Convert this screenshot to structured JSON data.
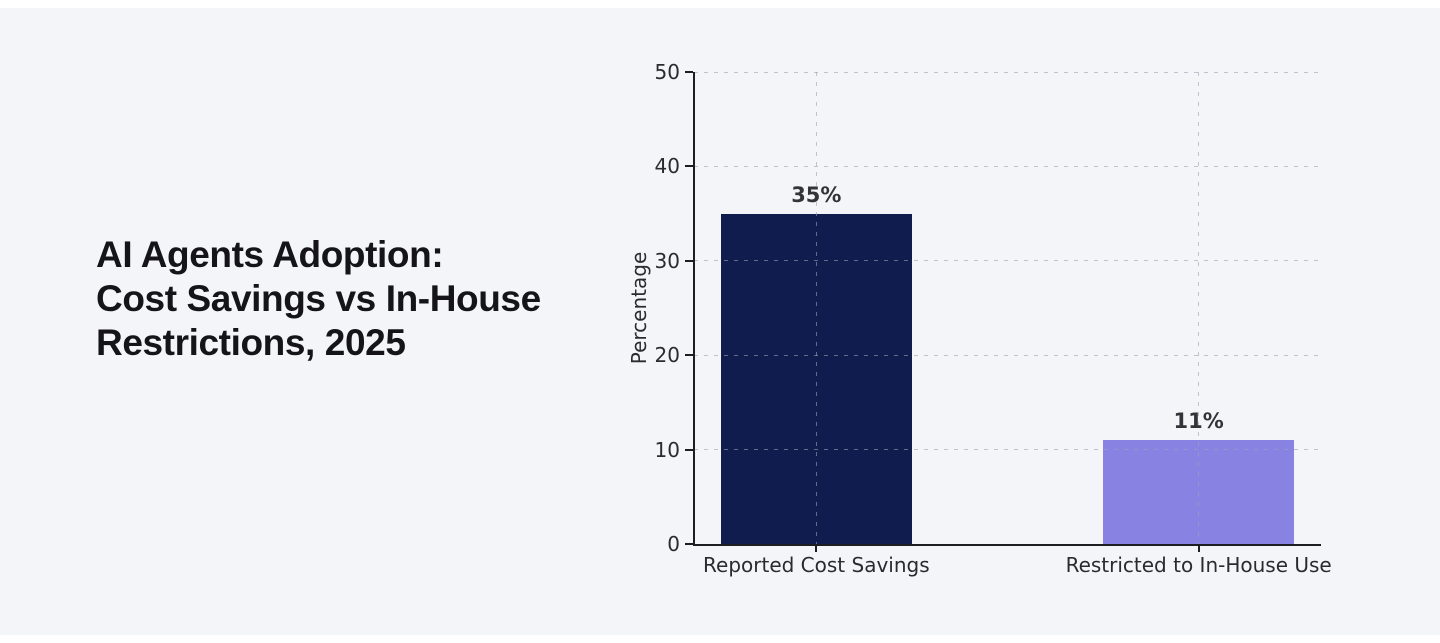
{
  "page": {
    "outer_background": "#ffffff",
    "panel_background": "#f4f5f9"
  },
  "title": {
    "text": "AI Agents Adoption:\nCost Savings vs In-House\nRestrictions, 2025",
    "color": "#141419"
  },
  "chart_data": {
    "type": "bar",
    "title": "",
    "categories": [
      "Reported Cost Savings",
      "Restricted to In-House Use"
    ],
    "values": [
      35,
      11
    ],
    "value_labels": [
      "35%",
      "11%"
    ],
    "bar_colors": [
      "#101c4e",
      "#8883e2"
    ],
    "xlabel": "",
    "ylabel": "Percentage",
    "ylim": [
      0,
      50
    ],
    "yticks": [
      0,
      10,
      20,
      30,
      40,
      50
    ],
    "xlim": [
      -0.32,
      1.32
    ],
    "bar_positions": [
      0,
      1
    ],
    "bar_width": 0.5,
    "grid": "dashed horizontal lines at yticks, dashed vertical lines at bar centers",
    "grid_color": "#c6c8d2",
    "axis_color": "#1d1d23",
    "tick_label_color": "#2a2a30",
    "value_label_color": "#33333a",
    "legend": "none"
  }
}
